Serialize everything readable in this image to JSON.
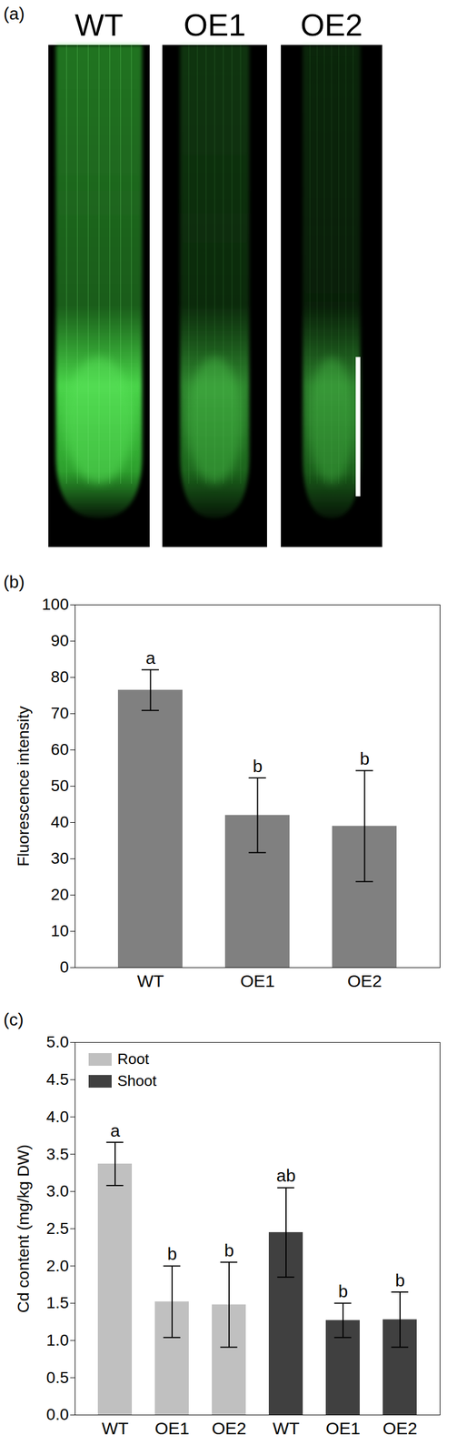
{
  "chart_data": [
    {
      "type": "image",
      "title": "(a)",
      "categories": [
        "WT",
        "OE1",
        "OE2"
      ]
    },
    {
      "type": "bar",
      "title": "(b)",
      "categories": [
        "WT",
        "OE1",
        "OE2"
      ],
      "values": [
        76.5,
        42,
        39
      ],
      "errors": [
        5.6,
        10.3,
        15.3
      ],
      "letters": [
        "a",
        "b",
        "b"
      ],
      "color": "#808080",
      "ylabel": "Fluorescence intensity",
      "ylim": [
        0,
        100
      ],
      "yticks": [
        0,
        10,
        20,
        30,
        40,
        50,
        60,
        70,
        80,
        90,
        100
      ]
    },
    {
      "type": "bar",
      "title": "(c)",
      "categories": [
        "WT",
        "OE1",
        "OE2"
      ],
      "series": [
        {
          "name": "Root",
          "color": "#c0c0c0",
          "values": [
            3.37,
            1.52,
            1.48
          ],
          "errors": [
            0.29,
            0.48,
            0.57
          ],
          "letters": [
            "a",
            "b",
            "b"
          ]
        },
        {
          "name": "Shoot",
          "color": "#404040",
          "values": [
            2.45,
            1.27,
            1.28
          ],
          "errors": [
            0.6,
            0.23,
            0.37
          ],
          "letters": [
            "ab",
            "b",
            "b"
          ]
        }
      ],
      "ylabel": "Cd content (mg/kg DW)",
      "legend": "top-left",
      "ylim": [
        0,
        5
      ],
      "yticks": [
        {
          "value": 0,
          "label": "0.0"
        },
        0.5,
        {
          "value": 1,
          "label": "1.0"
        },
        1.5,
        {
          "value": 2,
          "label": "2.0"
        },
        2.5,
        {
          "value": 3,
          "label": "3.0"
        },
        3.5,
        {
          "value": 4,
          "label": "4.0"
        },
        4.5,
        {
          "value": 5,
          "label": "5.0"
        }
      ]
    }
  ]
}
